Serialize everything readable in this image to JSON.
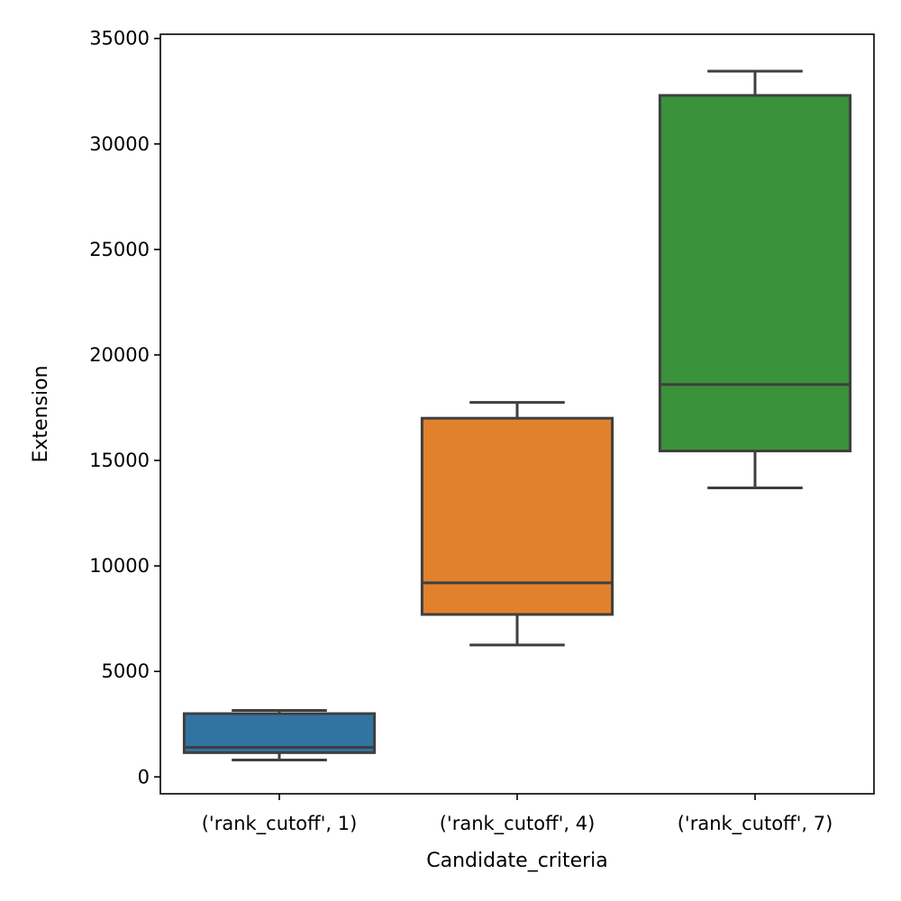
{
  "chart_data": {
    "type": "box",
    "xlabel": "Candidate_criteria",
    "ylabel": "Extension",
    "ylim": [
      -800,
      35200
    ],
    "yticks": [
      0,
      5000,
      10000,
      15000,
      20000,
      25000,
      30000,
      35000
    ],
    "ytick_labels": [
      "0",
      "5000",
      "10000",
      "15000",
      "20000",
      "25000",
      "30000",
      "35000"
    ],
    "grid": false,
    "categories": [
      "('rank_cutoff', 1)",
      "('rank_cutoff', 4)",
      "('rank_cutoff', 7)"
    ],
    "boxes": [
      {
        "category": "('rank_cutoff', 1)",
        "whisker_low": 800,
        "q1": 1150,
        "median": 1400,
        "q3": 3000,
        "whisker_high": 3150,
        "color": "#3274a1"
      },
      {
        "category": "('rank_cutoff', 4)",
        "whisker_low": 6250,
        "q1": 7700,
        "median": 9200,
        "q3": 17000,
        "whisker_high": 17750,
        "color": "#e1812c"
      },
      {
        "category": "('rank_cutoff', 7)",
        "whisker_low": 13700,
        "q1": 15450,
        "median": 18600,
        "q3": 32300,
        "whisker_high": 33450,
        "color": "#3a923a"
      }
    ],
    "line_color": "#3f3f3f"
  }
}
